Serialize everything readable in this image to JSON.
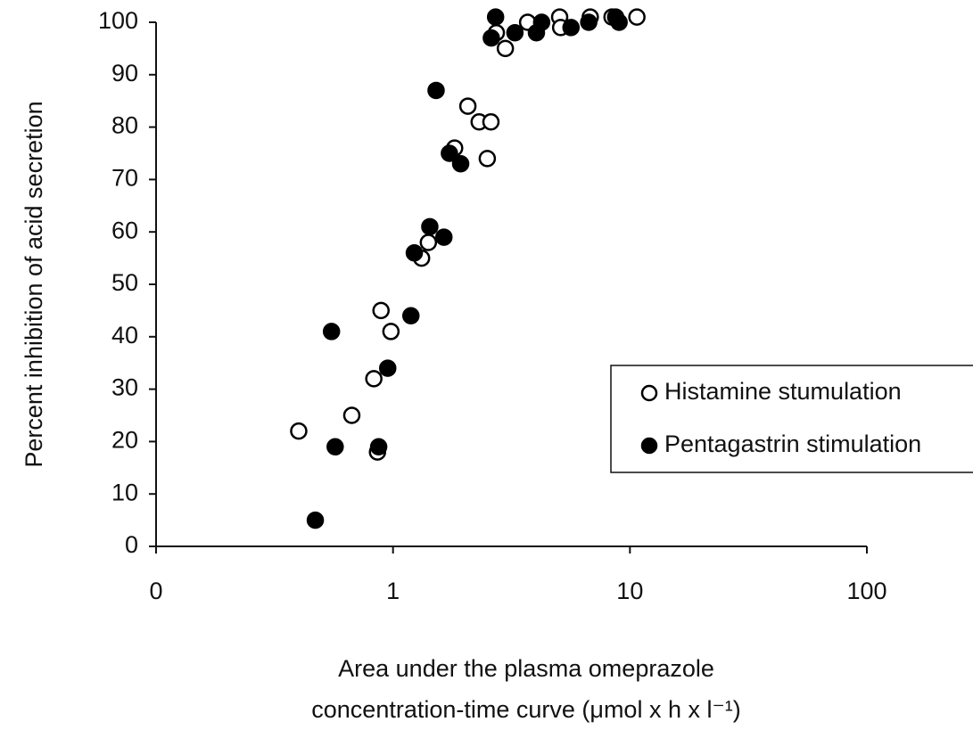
{
  "chart_data": {
    "type": "scatter",
    "ylabel": "Percent inhibition of acid secretion",
    "xlabel": [
      "Area under the plasma omeprazole",
      "concentration-time curve (μmol x h x l⁻¹)"
    ],
    "xscale": "log",
    "xlim": [
      0.1,
      100
    ],
    "xticks": [
      {
        "value": 0.1,
        "label": "0"
      },
      1,
      10,
      100
    ],
    "ylim": [
      0,
      100
    ],
    "yticks": [
      0,
      10,
      20,
      30,
      40,
      50,
      60,
      70,
      80,
      90,
      100
    ],
    "grid": false,
    "legend": "lower right",
    "series": [
      {
        "name": "Histamine stumulation",
        "color": "#000000",
        "filled": false,
        "x": [
          0.4,
          0.67,
          0.83,
          0.86,
          0.89,
          0.98,
          1.32,
          1.41,
          1.82,
          2.07,
          2.31,
          2.59,
          2.5,
          2.98,
          2.73,
          3.7,
          5.05,
          5.1,
          6.8,
          8.4,
          10.7
        ],
        "values": [
          22,
          25,
          32,
          18,
          45,
          41,
          55,
          58,
          76,
          84,
          81,
          81,
          74,
          95,
          98,
          100,
          101,
          99,
          101,
          101,
          101
        ]
      },
      {
        "name": "Pentagastrin stimulation",
        "color": "#000000",
        "filled": true,
        "x": [
          0.47,
          0.55,
          0.57,
          0.87,
          0.95,
          1.19,
          1.23,
          1.43,
          1.52,
          1.64,
          1.73,
          1.93,
          2.71,
          2.6,
          3.27,
          4.03,
          4.24,
          5.64,
          6.7,
          8.7,
          9.0
        ],
        "values": [
          5,
          41,
          19,
          19,
          34,
          44,
          56,
          61,
          87,
          59,
          75,
          73,
          101,
          97,
          98,
          98,
          100,
          99,
          100,
          101,
          100
        ]
      }
    ]
  }
}
